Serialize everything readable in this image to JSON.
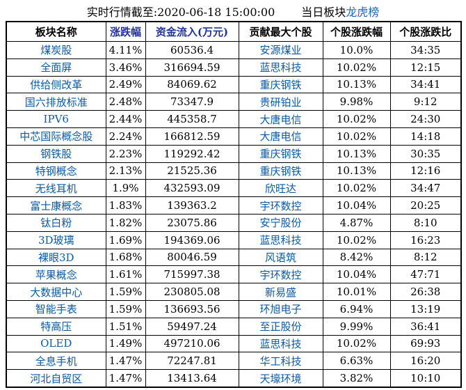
{
  "title": {
    "timestamp_label": "实时行情截至:2020-06-18 15:00:00",
    "board_label": "当日板块",
    "board_link": "龙虎榜"
  },
  "table": {
    "header_blue_columns": [
      1,
      2
    ],
    "link_columns": [
      0,
      3
    ]
  },
  "chart_data": {
    "type": "table",
    "title": "实时行情截至:2020-06-18 15:00:00 当日板块龙虎榜",
    "columns": [
      "板块名称",
      "涨跌幅",
      "资金流入(万元)",
      "贡献最大个股",
      "个股涨跌幅",
      "个股涨跌比"
    ],
    "rows": [
      [
        "煤炭股",
        "4.11%",
        "60536.4",
        "安源煤业",
        "10.0%",
        "34:35"
      ],
      [
        "全面屏",
        "3.46%",
        "316694.59",
        "蓝思科技",
        "10.02%",
        "12:15"
      ],
      [
        "供给侧改革",
        "2.49%",
        "84069.62",
        "重庆钢铁",
        "10.13%",
        "34:41"
      ],
      [
        "国六排放标准",
        "2.48%",
        "73347.9",
        "贵研铂业",
        "9.98%",
        "9:12"
      ],
      [
        "IPV6",
        "2.44%",
        "445358.7",
        "大唐电信",
        "10.02%",
        "24:30"
      ],
      [
        "中芯国际概念股",
        "2.24%",
        "166812.59",
        "大唐电信",
        "10.02%",
        "14:18"
      ],
      [
        "钢铁股",
        "2.23%",
        "119292.42",
        "重庆钢铁",
        "10.13%",
        "30:35"
      ],
      [
        "特钢概念",
        "2.13%",
        "21525.36",
        "重庆钢铁",
        "10.13%",
        "12:16"
      ],
      [
        "无线耳机",
        "1.9%",
        "432593.09",
        "欣旺达",
        "10.02%",
        "34:47"
      ],
      [
        "富士康概念",
        "1.83%",
        "139363.2",
        "宇环数控",
        "10.04%",
        "20:25"
      ],
      [
        "钛白粉",
        "1.82%",
        "23075.86",
        "安宁股份",
        "4.87%",
        "8:10"
      ],
      [
        "3D玻璃",
        "1.69%",
        "194369.06",
        "蓝思科技",
        "10.02%",
        "16:23"
      ],
      [
        "裸眼3D",
        "1.68%",
        "80046.59",
        "风语筑",
        "8.42%",
        "8:12"
      ],
      [
        "苹果概念",
        "1.61%",
        "715997.38",
        "宇环数控",
        "10.04%",
        "47:71"
      ],
      [
        "大数据中心",
        "1.59%",
        "230805.08",
        "新易盛",
        "10.01%",
        "26:38"
      ],
      [
        "智能手表",
        "1.59%",
        "136693.56",
        "环旭电子",
        "6.94%",
        "13:19"
      ],
      [
        "特高压",
        "1.51%",
        "59497.24",
        "至正股份",
        "9.99%",
        "36:41"
      ],
      [
        "OLED",
        "1.49%",
        "497210.06",
        "蓝思科技",
        "10.02%",
        "69:93"
      ],
      [
        "全息手机",
        "1.47%",
        "72247.81",
        "华工科技",
        "6.63%",
        "16:20"
      ],
      [
        "河北自贸区",
        "1.47%",
        "13413.64",
        "天壕环境",
        "3.82%",
        "10:10"
      ]
    ]
  },
  "colors": {
    "link_blue": "#0a5aa5",
    "header_blue": "#223399",
    "title_link_blue": "#1a66c2",
    "border_black": "#000000"
  }
}
